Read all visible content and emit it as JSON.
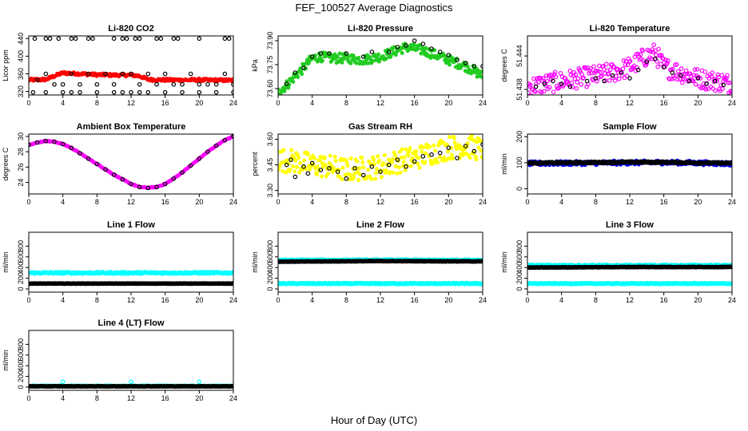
{
  "figure": {
    "title": "FEF_100527  Average Diagnostics",
    "xlabel": "Hour of Day (UTC)"
  },
  "colors": {
    "red": "#ff0000",
    "green": "#22cc22",
    "magenta": "#ff00ff",
    "yellow": "#ffff00",
    "blue": "#0000ff",
    "cyan": "#00ffff",
    "black": "#000000"
  },
  "chart_data": [
    {
      "type": "scatter",
      "title": "Li-820 CO2",
      "ylabel": "Licor ppm",
      "xlim": [
        0,
        24
      ],
      "ylim": [
        312,
        446
      ],
      "xticks": [
        "0",
        "4",
        "8",
        "12",
        "16",
        "20",
        "24"
      ],
      "yticks": [
        320,
        360,
        400,
        440
      ],
      "series": [
        {
          "color": "red",
          "marker": "dot",
          "dense": true,
          "spread": 3,
          "x": [
            0,
            2,
            3,
            4,
            6,
            8,
            10,
            12,
            13,
            14,
            16,
            20,
            24
          ],
          "y": [
            346,
            347,
            355,
            362,
            360,
            358,
            357,
            357,
            355,
            347,
            346,
            346,
            345
          ]
        },
        {
          "color": "black",
          "marker": "circle",
          "x": [
            0.7,
            2,
            2.5,
            3.5,
            5,
            5.5,
            7,
            7.5,
            10,
            11,
            11.5,
            12.5,
            13,
            15,
            15.5,
            17,
            17.5,
            20,
            23,
            23.5
          ],
          "y": [
            440,
            440,
            440,
            440,
            440,
            440,
            440,
            440,
            440,
            440,
            440,
            440,
            440,
            440,
            440,
            440,
            440,
            440,
            440,
            440
          ]
        },
        {
          "color": "black",
          "marker": "circle",
          "x": [
            0.5,
            2,
            4,
            5,
            6,
            8,
            10,
            11,
            12,
            13,
            14,
            16,
            18,
            20,
            22,
            24
          ],
          "y": [
            318,
            318,
            318,
            318,
            318,
            318,
            318,
            318,
            318,
            318,
            318,
            318,
            318,
            318,
            318,
            318
          ]
        },
        {
          "color": "black",
          "marker": "circle",
          "x": [
            1,
            2,
            3,
            4,
            5,
            6,
            7,
            8,
            9,
            10,
            11,
            12,
            13,
            14,
            15,
            16,
            17,
            18,
            19,
            20,
            21,
            22,
            23,
            24
          ],
          "y": [
            346,
            360,
            336,
            336,
            360,
            336,
            360,
            336,
            360,
            336,
            360,
            360,
            336,
            360,
            336,
            360,
            336,
            336,
            360,
            336,
            336,
            336,
            360,
            336
          ]
        }
      ]
    },
    {
      "type": "scatter",
      "title": "Li-820 Pressure",
      "ylabel": "kPa",
      "xlim": [
        0,
        24
      ],
      "ylim": [
        73.56,
        73.93
      ],
      "xticks": [
        "0",
        "4",
        "8",
        "12",
        "16",
        "20",
        "24"
      ],
      "yticks": [
        "73.60",
        "73.75",
        "73.90"
      ],
      "series": [
        {
          "color": "green",
          "marker": "dot",
          "dense": true,
          "spread": 0.03,
          "x": [
            0,
            1,
            2,
            3,
            4,
            5,
            6,
            8,
            10,
            12,
            14,
            15,
            16,
            17,
            18,
            20,
            22,
            24
          ],
          "y": [
            73.58,
            73.62,
            73.68,
            73.73,
            73.79,
            73.8,
            73.79,
            73.79,
            73.78,
            73.8,
            73.84,
            73.86,
            73.85,
            73.84,
            73.82,
            73.78,
            73.74,
            73.68
          ]
        },
        {
          "color": "black",
          "marker": "circle",
          "x": [
            1,
            2,
            3,
            4,
            5,
            6,
            8,
            10,
            11,
            13,
            14,
            15,
            16,
            17,
            18,
            19,
            20,
            21,
            22,
            23,
            24
          ],
          "y": [
            73.63,
            73.7,
            73.73,
            73.8,
            73.82,
            73.82,
            73.82,
            73.8,
            73.83,
            73.83,
            73.86,
            73.87,
            73.9,
            73.88,
            73.85,
            73.83,
            73.81,
            73.78,
            73.76,
            73.74,
            73.74
          ]
        }
      ]
    },
    {
      "type": "scatter",
      "title": "Li-820 Temperature",
      "ylabel": "degrees C",
      "xlim": [
        0,
        24
      ],
      "ylim": [
        51.437,
        51.4476
      ],
      "xticks": [
        "0",
        "4",
        "8",
        "12",
        "16",
        "20",
        "24"
      ],
      "yticks": [
        "51.438",
        "51.444"
      ],
      "series": [
        {
          "color": "magenta",
          "marker": "circle",
          "dense": true,
          "spread": 0.0018,
          "x": [
            0,
            2,
            4,
            6,
            8,
            10,
            12,
            13,
            14,
            15,
            16,
            18,
            20,
            22,
            24
          ],
          "y": [
            51.4385,
            51.439,
            51.4395,
            51.44,
            51.4405,
            51.441,
            51.442,
            51.443,
            51.444,
            51.4445,
            51.442,
            51.441,
            51.44,
            51.4395,
            51.439
          ]
        },
        {
          "color": "black",
          "marker": "circle",
          "x": [
            1,
            2,
            3,
            4,
            5,
            7,
            8,
            9,
            10,
            11,
            12,
            13,
            14,
            15,
            16,
            17,
            18,
            19,
            20,
            21,
            22,
            23
          ],
          "y": [
            51.4385,
            51.439,
            51.4395,
            51.439,
            51.4385,
            51.4395,
            51.44,
            51.4395,
            51.4405,
            51.441,
            51.44,
            51.4415,
            51.443,
            51.4435,
            51.442,
            51.441,
            51.4405,
            51.4395,
            51.44,
            51.439,
            51.4395,
            51.4388
          ]
        }
      ]
    },
    {
      "type": "scatter",
      "title": "Ambient Box Temperature",
      "ylabel": "degrees C",
      "xlim": [
        0,
        24
      ],
      "ylim": [
        22.5,
        30.3
      ],
      "xticks": [
        "0",
        "4",
        "8",
        "12",
        "16",
        "20",
        "24"
      ],
      "yticks": [
        24,
        26,
        28,
        30
      ],
      "series": [
        {
          "color": "magenta",
          "marker": "dot",
          "dense": true,
          "spread": 0.05,
          "x": [
            0,
            1,
            2,
            3,
            4,
            5,
            6,
            7,
            8,
            9,
            10,
            11,
            12,
            13,
            14,
            15,
            16,
            17,
            18,
            19,
            20,
            21,
            22,
            23,
            24
          ],
          "y": [
            28.9,
            29.2,
            29.4,
            29.3,
            29.0,
            28.5,
            27.8,
            27.1,
            26.4,
            25.7,
            25.0,
            24.4,
            23.8,
            23.4,
            23.3,
            23.4,
            23.8,
            24.5,
            25.3,
            26.2,
            27.1,
            28.0,
            28.8,
            29.5,
            30.0
          ]
        },
        {
          "color": "black",
          "marker": "circle",
          "x": [
            0,
            1,
            2,
            3,
            4,
            5,
            6,
            7,
            8,
            9,
            10,
            11,
            12,
            13,
            14,
            15,
            16,
            17,
            18,
            19,
            20,
            21,
            22,
            23,
            24
          ],
          "y": [
            28.9,
            29.2,
            29.4,
            29.3,
            29.0,
            28.5,
            27.8,
            27.1,
            26.4,
            25.7,
            25.0,
            24.4,
            23.8,
            23.4,
            23.3,
            23.4,
            23.8,
            24.5,
            25.3,
            26.2,
            27.1,
            28.0,
            28.8,
            29.5,
            30.0
          ]
        }
      ]
    },
    {
      "type": "scatter",
      "title": "Gas Stream RH",
      "ylabel": "percent",
      "xlim": [
        0,
        24
      ],
      "ylim": [
        3.28,
        3.63
      ],
      "xticks": [
        "0",
        "4",
        "8",
        "12",
        "16",
        "20",
        "24"
      ],
      "yticks": [
        "3.30",
        "3.45",
        "3.60"
      ],
      "series": [
        {
          "color": "yellow",
          "marker": "dot",
          "dense": true,
          "spread": 0.07,
          "x": [
            0,
            2,
            4,
            6,
            8,
            10,
            12,
            14,
            16,
            18,
            20,
            22,
            24
          ],
          "y": [
            3.48,
            3.47,
            3.45,
            3.44,
            3.42,
            3.43,
            3.44,
            3.47,
            3.49,
            3.52,
            3.55,
            3.56,
            3.54
          ]
        },
        {
          "color": "black",
          "marker": "circle",
          "x": [
            1,
            1.5,
            2,
            3,
            3.5,
            4,
            5,
            6,
            7,
            8,
            9,
            10,
            11,
            12,
            13,
            14,
            15,
            16,
            17,
            18,
            19,
            20,
            21,
            22,
            23,
            24
          ],
          "y": [
            3.45,
            3.48,
            3.38,
            3.44,
            3.4,
            3.46,
            3.42,
            3.43,
            3.41,
            3.37,
            3.43,
            3.39,
            3.44,
            3.41,
            3.45,
            3.48,
            3.44,
            3.47,
            3.5,
            3.51,
            3.52,
            3.55,
            3.49,
            3.56,
            3.53,
            3.57
          ]
        }
      ]
    },
    {
      "type": "scatter",
      "title": "Sample Flow",
      "ylabel": "ml/min",
      "xlim": [
        0,
        24
      ],
      "ylim": [
        -20,
        210
      ],
      "xticks": [
        "0",
        "4",
        "8",
        "12",
        "16",
        "20",
        "24"
      ],
      "yticks": [
        0,
        100,
        200
      ],
      "series": [
        {
          "color": "blue",
          "marker": "dot",
          "dense": true,
          "spread": 8,
          "x": [
            0,
            4,
            8,
            12,
            16,
            20,
            24
          ],
          "y": [
            97,
            98,
            99,
            100,
            101,
            99,
            96
          ]
        },
        {
          "color": "black",
          "marker": "circle",
          "dense": true,
          "spread": 3,
          "x": [
            0,
            4,
            8,
            12,
            16,
            20,
            24
          ],
          "y": [
            99,
            100,
            101,
            102,
            102,
            100,
            98
          ]
        }
      ]
    },
    {
      "type": "scatter",
      "title": "Line 1 Flow",
      "ylabel": "ml/min",
      "xlim": [
        0,
        24
      ],
      "ylim": [
        -60,
        1060
      ],
      "xticks": [
        "0",
        "4",
        "8",
        "12",
        "16",
        "20",
        "24"
      ],
      "yticks": [
        0,
        200,
        400,
        600,
        800
      ],
      "series": [
        {
          "color": "cyan",
          "marker": "circle",
          "dense": true,
          "spread": 15,
          "x": [
            0,
            12,
            24
          ],
          "y": [
            300,
            300,
            300
          ]
        },
        {
          "color": "black",
          "marker": "circle",
          "dense": true,
          "spread": 3,
          "x": [
            0,
            12,
            24
          ],
          "y": [
            100,
            100,
            100
          ]
        }
      ]
    },
    {
      "type": "scatter",
      "title": "Line 2 Flow",
      "ylabel": "ml/min",
      "xlim": [
        0,
        24
      ],
      "ylim": [
        -60,
        1060
      ],
      "xticks": [
        "0",
        "4",
        "8",
        "12",
        "16",
        "20",
        "24"
      ],
      "yticks": [
        0,
        200,
        400,
        600,
        800
      ],
      "series": [
        {
          "color": "cyan",
          "marker": "circle",
          "dense": true,
          "spread": 10,
          "x": [
            0,
            12,
            24
          ],
          "y": [
            100,
            100,
            100
          ]
        },
        {
          "color": "cyan",
          "marker": "circle",
          "dense": true,
          "spread": 10,
          "x": [
            0,
            12,
            24
          ],
          "y": [
            540,
            540,
            540
          ]
        },
        {
          "color": "black",
          "marker": "circle",
          "dense": true,
          "spread": 4,
          "x": [
            0,
            12,
            24
          ],
          "y": [
            510,
            520,
            515
          ]
        }
      ]
    },
    {
      "type": "scatter",
      "title": "Line 3 Flow",
      "ylabel": "ml/min",
      "xlim": [
        0,
        24
      ],
      "ylim": [
        -60,
        1060
      ],
      "xticks": [
        "0",
        "4",
        "8",
        "12",
        "16",
        "20",
        "24"
      ],
      "yticks": [
        0,
        200,
        400,
        600,
        800
      ],
      "series": [
        {
          "color": "cyan",
          "marker": "circle",
          "dense": true,
          "spread": 12,
          "x": [
            0,
            12,
            24
          ],
          "y": [
            440,
            440,
            440
          ]
        },
        {
          "color": "cyan",
          "marker": "circle",
          "dense": true,
          "spread": 8,
          "x": [
            0,
            12,
            24
          ],
          "y": [
            100,
            100,
            100
          ]
        },
        {
          "color": "black",
          "marker": "circle",
          "dense": true,
          "spread": 4,
          "x": [
            0,
            12,
            24
          ],
          "y": [
            400,
            410,
            410
          ]
        }
      ]
    },
    {
      "type": "scatter",
      "title": "Line 4 (LT) Flow",
      "ylabel": "ml/min",
      "xlim": [
        0,
        24
      ],
      "ylim": [
        -60,
        1060
      ],
      "xticks": [
        "0",
        "4",
        "8",
        "12",
        "16",
        "20",
        "24"
      ],
      "yticks": [
        0,
        200,
        400,
        600,
        800
      ],
      "series": [
        {
          "color": "cyan",
          "marker": "circle",
          "dense": true,
          "spread": 6,
          "x": [
            0,
            12,
            24
          ],
          "y": [
            20,
            20,
            20
          ]
        },
        {
          "color": "cyan",
          "marker": "circle",
          "x": [
            4,
            12,
            20
          ],
          "y": [
            100,
            100,
            100
          ]
        },
        {
          "color": "black",
          "marker": "circle",
          "dense": true,
          "spread": 3,
          "x": [
            0,
            12,
            24
          ],
          "y": [
            15,
            15,
            15
          ]
        }
      ]
    }
  ]
}
